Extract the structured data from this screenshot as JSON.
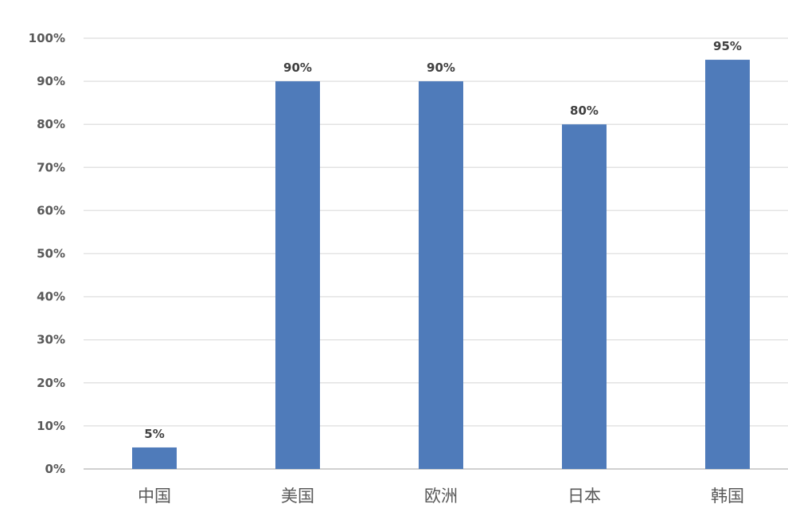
{
  "chart_data": {
    "type": "bar",
    "categories": [
      "中国",
      "美国",
      "欧洲",
      "日本",
      "韩国"
    ],
    "values": [
      5,
      90,
      90,
      80,
      95
    ],
    "data_labels": [
      "5%",
      "90%",
      "90%",
      "80%",
      "95%"
    ],
    "title": "",
    "xlabel": "",
    "ylabel": "",
    "ylim": [
      0,
      100
    ],
    "yticks": [
      "0%",
      "10%",
      "20%",
      "30%",
      "40%",
      "50%",
      "60%",
      "70%",
      "80%",
      "90%",
      "100%"
    ],
    "grid": true,
    "legend": "none",
    "bar_color": "#4f7bba",
    "grid_color": "#e3e3e3"
  }
}
